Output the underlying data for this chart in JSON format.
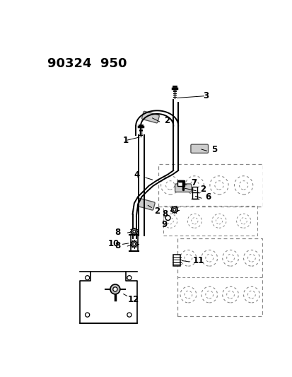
{
  "title": "90324  950",
  "bg_color": "#ffffff",
  "line_color": "#000000",
  "dashed_color": "#888888",
  "title_fontsize": 13,
  "figsize": [
    4.14,
    5.33
  ],
  "dpi": 100
}
